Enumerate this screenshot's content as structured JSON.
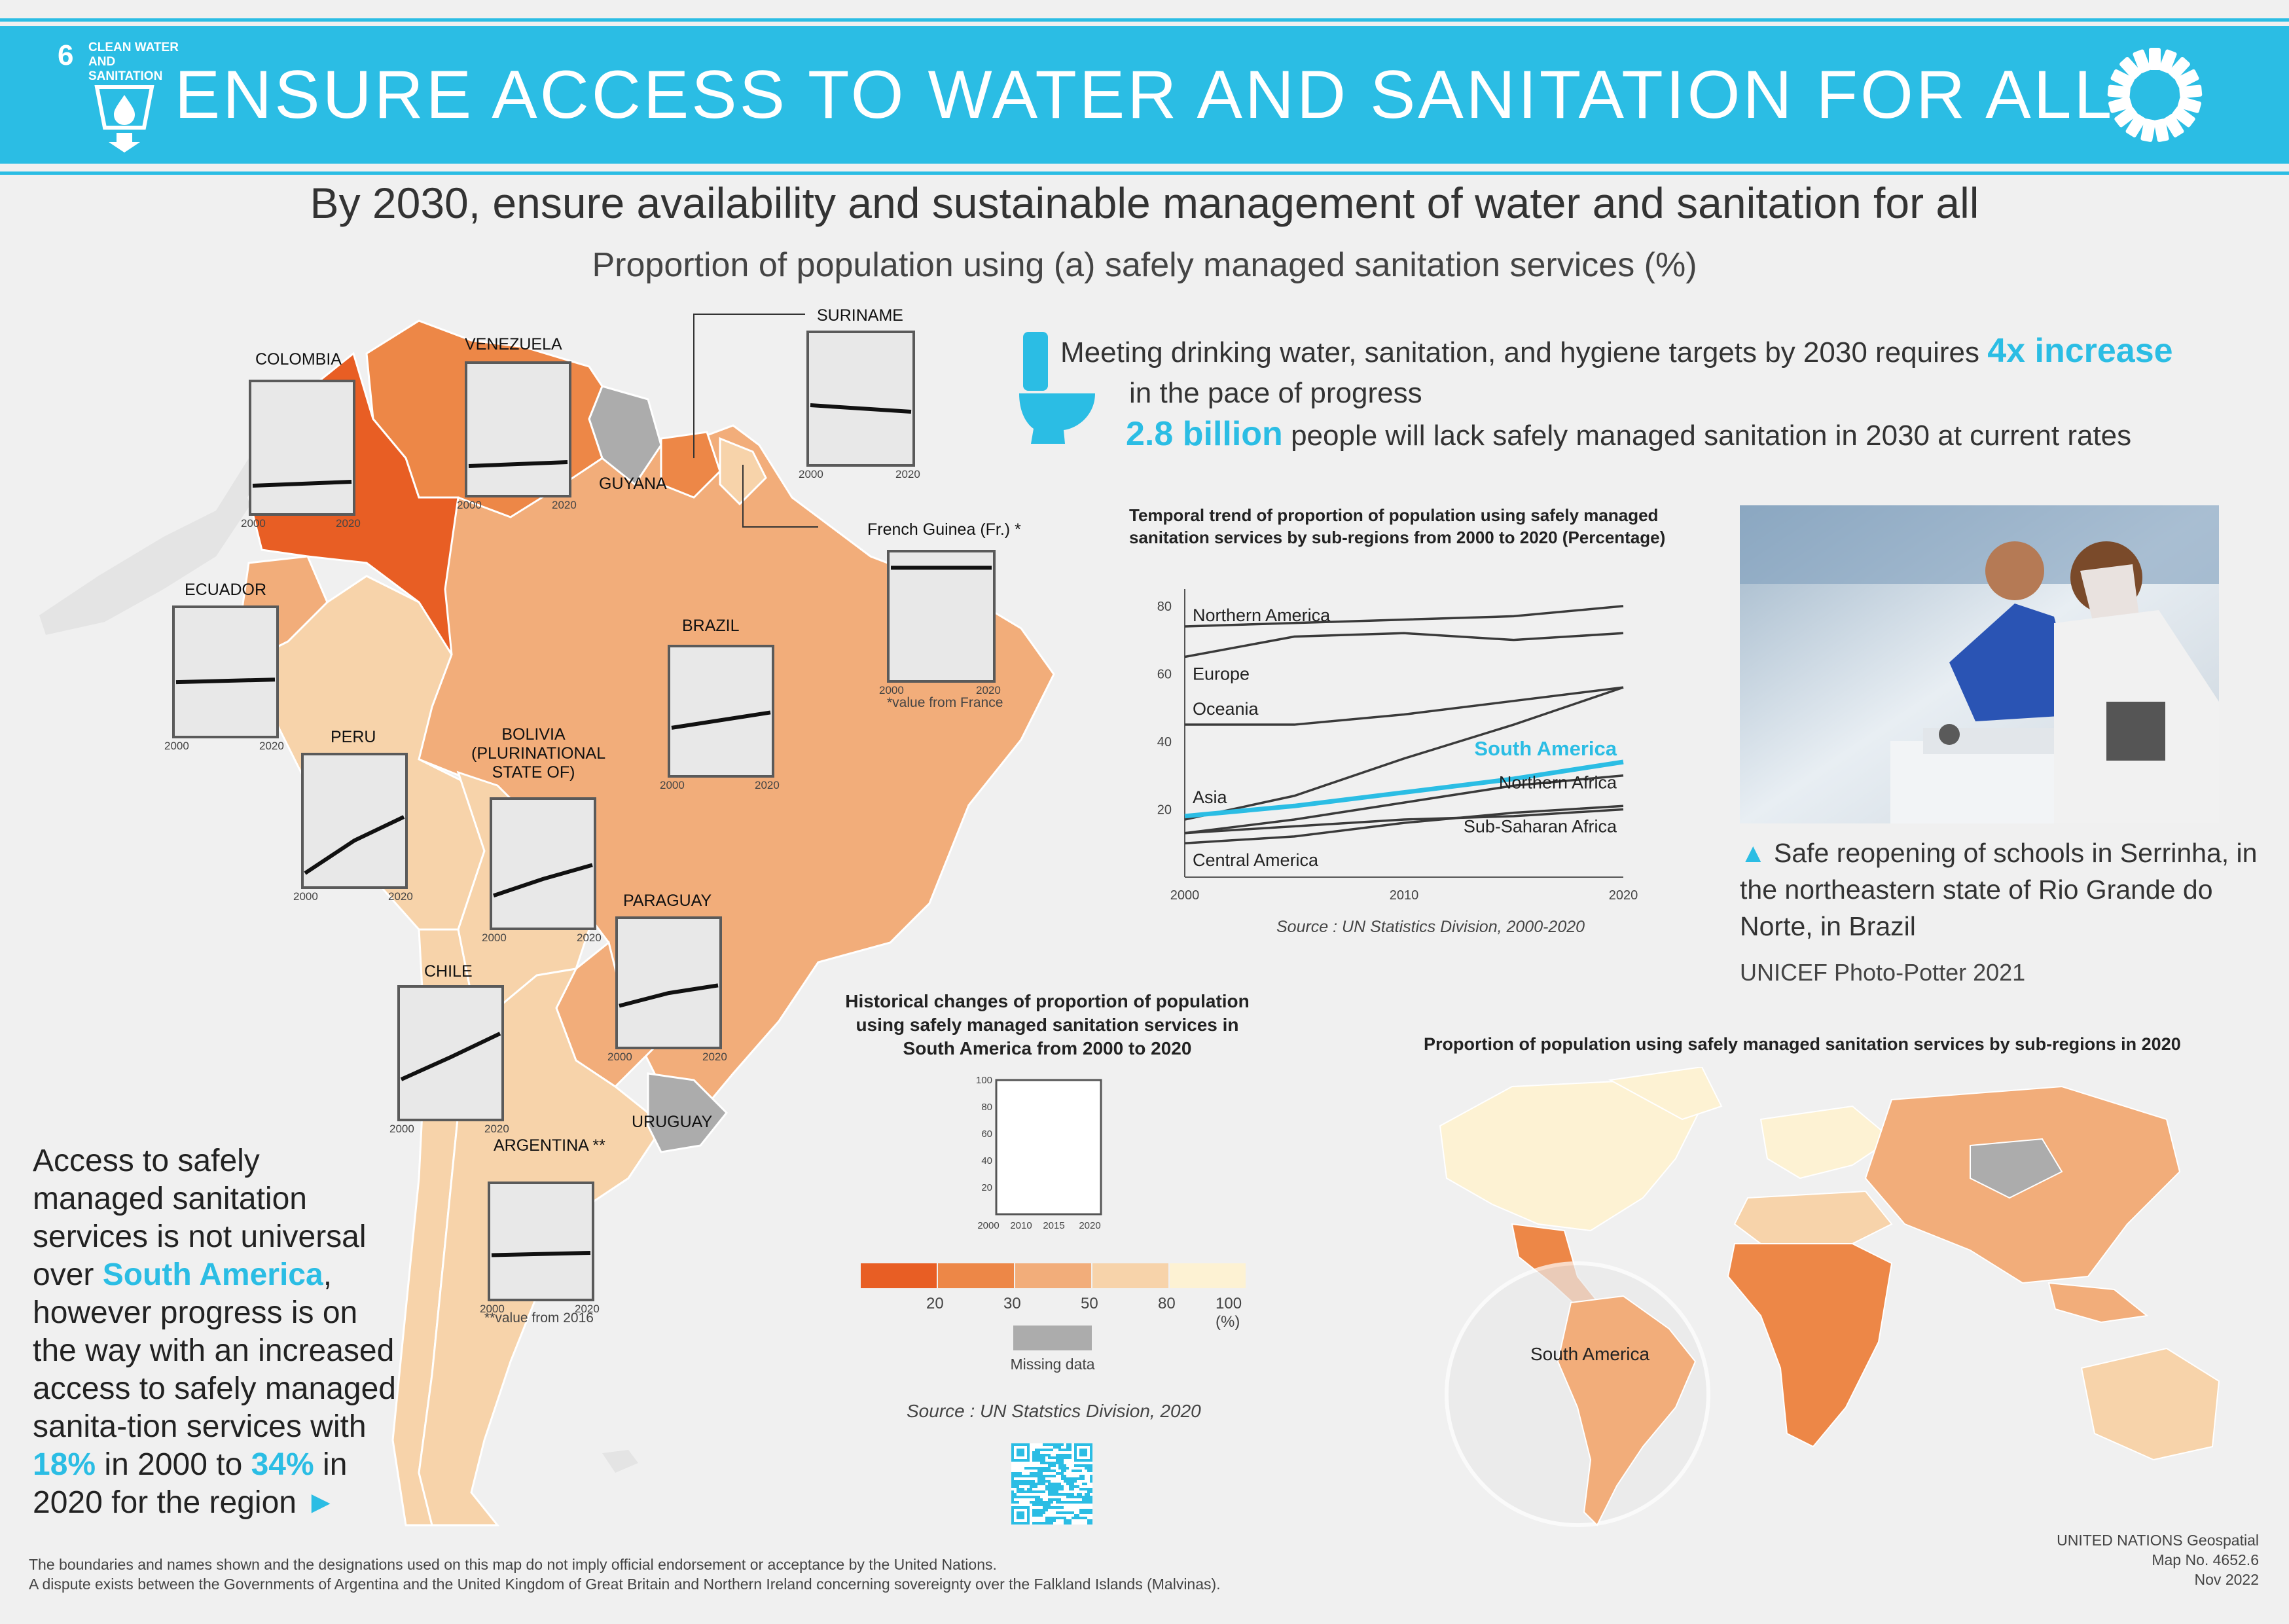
{
  "header": {
    "title": "ENSURE ACCESS TO WATER AND SANITATION FOR ALL",
    "sdg_number": "6",
    "sdg_label": "CLEAN WATER AND SANITATION"
  },
  "headline": "By 2030, ensure availability and sustainable management of water and sanitation for all",
  "subheadline": "Proportion of population using (a) safely managed sanitation services (%)",
  "callout": {
    "line1": "Meeting drinking water, sanitation, and hygiene targets by 2030 requires",
    "highlight1": "4x increase",
    "line2": "in the pace of progress",
    "highlight2": "2.8 billion",
    "line3": "people will lack safely managed sanitation in 2030 at current rates"
  },
  "countries": [
    {
      "name": "COLOMBIA",
      "start": 2000,
      "end": 2020,
      "values": [
        21,
        24
      ]
    },
    {
      "name": "VENEZUELA",
      "start": 2000,
      "end": 2020,
      "values": [
        22,
        25
      ]
    },
    {
      "name": "SURINAME",
      "start": 2000,
      "end": 2020,
      "values": [
        45,
        40
      ]
    },
    {
      "name": "French Guinea (Fr.) *",
      "start": 2000,
      "end": 2020,
      "values": [
        88,
        88
      ],
      "note": "*value from France"
    },
    {
      "name": "ECUADOR",
      "start": 2000,
      "end": 2020,
      "values": [
        42,
        44
      ]
    },
    {
      "name": "BRAZIL",
      "start": 2000,
      "end": 2020,
      "values": [
        37,
        49
      ]
    },
    {
      "name": "PERU",
      "start": 2000,
      "end": 2020,
      "values": [
        10,
        35,
        53
      ]
    },
    {
      "name": "BOLIVIA (PLURINATIONAL STATE OF)",
      "start": 2000,
      "end": 2020,
      "values": [
        25,
        38,
        49
      ]
    },
    {
      "name": "PARAGUAY",
      "start": 2000,
      "end": 2020,
      "values": [
        32,
        42,
        48
      ]
    },
    {
      "name": "CHILE",
      "start": 2000,
      "end": 2020,
      "values": [
        30,
        47,
        65
      ]
    },
    {
      "name": "ARGENTINA **",
      "start": 2000,
      "end": 2020,
      "values": [
        38,
        40
      ],
      "note": "**value from 2016"
    }
  ],
  "missing_labels": [
    "GUYANA",
    "URUGUAY"
  ],
  "access_text": {
    "p1": "Access to safely managed sanitation services is not universal over",
    "region": "South America",
    "p2": ", however progress is on the way with an increased access to safely managed sanita-tion services with",
    "v2000": "18%",
    "p3": "in 2000 to",
    "v2020": "34%",
    "p4": "in 2020 for the region",
    "arrow": "►"
  },
  "chart_data": [
    {
      "type": "line",
      "title": "Temporal trend of proportion of population using safely managed sanitation services by sub-regions from 2000 to 2020 (Percentage)",
      "xlabel": "",
      "ylabel": "",
      "xlim": [
        2000,
        2020
      ],
      "ylim": [
        0,
        85
      ],
      "xticks": [
        "2000",
        "2010",
        "2020"
      ],
      "yticks": [
        "20",
        "40",
        "60",
        "80"
      ],
      "x": [
        2000,
        2005,
        2010,
        2015,
        2020
      ],
      "series": [
        {
          "name": "Northern America",
          "values": [
            74,
            75,
            76,
            77,
            80
          ]
        },
        {
          "name": "Europe",
          "values": [
            65,
            71,
            72,
            70,
            72
          ]
        },
        {
          "name": "Oceania",
          "values": [
            45,
            45,
            48,
            52,
            56
          ]
        },
        {
          "name": "Asia",
          "values": [
            17,
            24,
            35,
            45,
            56
          ]
        },
        {
          "name": "South America",
          "values": [
            18,
            21,
            25,
            29,
            34
          ]
        },
        {
          "name": "Northern Africa",
          "values": [
            13,
            17,
            22,
            27,
            30
          ]
        },
        {
          "name": "Sub-Saharan Africa",
          "values": [
            13,
            15,
            17,
            18,
            20
          ]
        },
        {
          "name": "Central America",
          "values": [
            10,
            12,
            16,
            19,
            21
          ]
        }
      ],
      "source": "Source : UN Statistics Division, 2000-2020"
    },
    {
      "type": "line",
      "title": "Historical changes of proportion of population using safely managed sanitation services in South America from 2000 to 2020",
      "xticks": [
        "2000",
        "2010",
        "2015",
        "2020"
      ],
      "yticks": [
        "20",
        "40",
        "60",
        "80",
        "100"
      ],
      "ylim": [
        0,
        100
      ]
    }
  ],
  "legend": {
    "values": [
      "20",
      "30",
      "50",
      "80",
      "100 (%)"
    ],
    "colors": [
      "#e85e24",
      "#ed8747",
      "#f2ad7a",
      "#f7d3aa",
      "#fdf2d3"
    ],
    "missing_label": "Missing data",
    "missing_color": "#acacac",
    "source": "Source : UN Statstics Division, 2020"
  },
  "photo": {
    "caption": "Safe reopening of schools in Serrinha, in the northeastern state of Rio Grande do Norte, in Brazil",
    "credit": "UNICEF Photo-Potter 2021",
    "marker": "▲"
  },
  "world_map": {
    "title": "Proportion of population using safely managed sanitation services by sub-regions in 2020",
    "highlight": "South America"
  },
  "footer": {
    "disclaimer1": "The boundaries and names shown and the designations used on this map do not imply official endorsement or acceptance by the United Nations.",
    "disclaimer2": "A dispute exists between the Governments of Argentina and the United Kingdom of Great Britain and Northern Ireland concerning sovereignty over the Falkland Islands (Malvinas).",
    "org": "UNITED NATIONS Geospatial",
    "map_no": "Map No. 4652.6",
    "date": "Nov 2022"
  },
  "colors": {
    "accent": "#2bbde4",
    "header": "#2bbde4"
  }
}
